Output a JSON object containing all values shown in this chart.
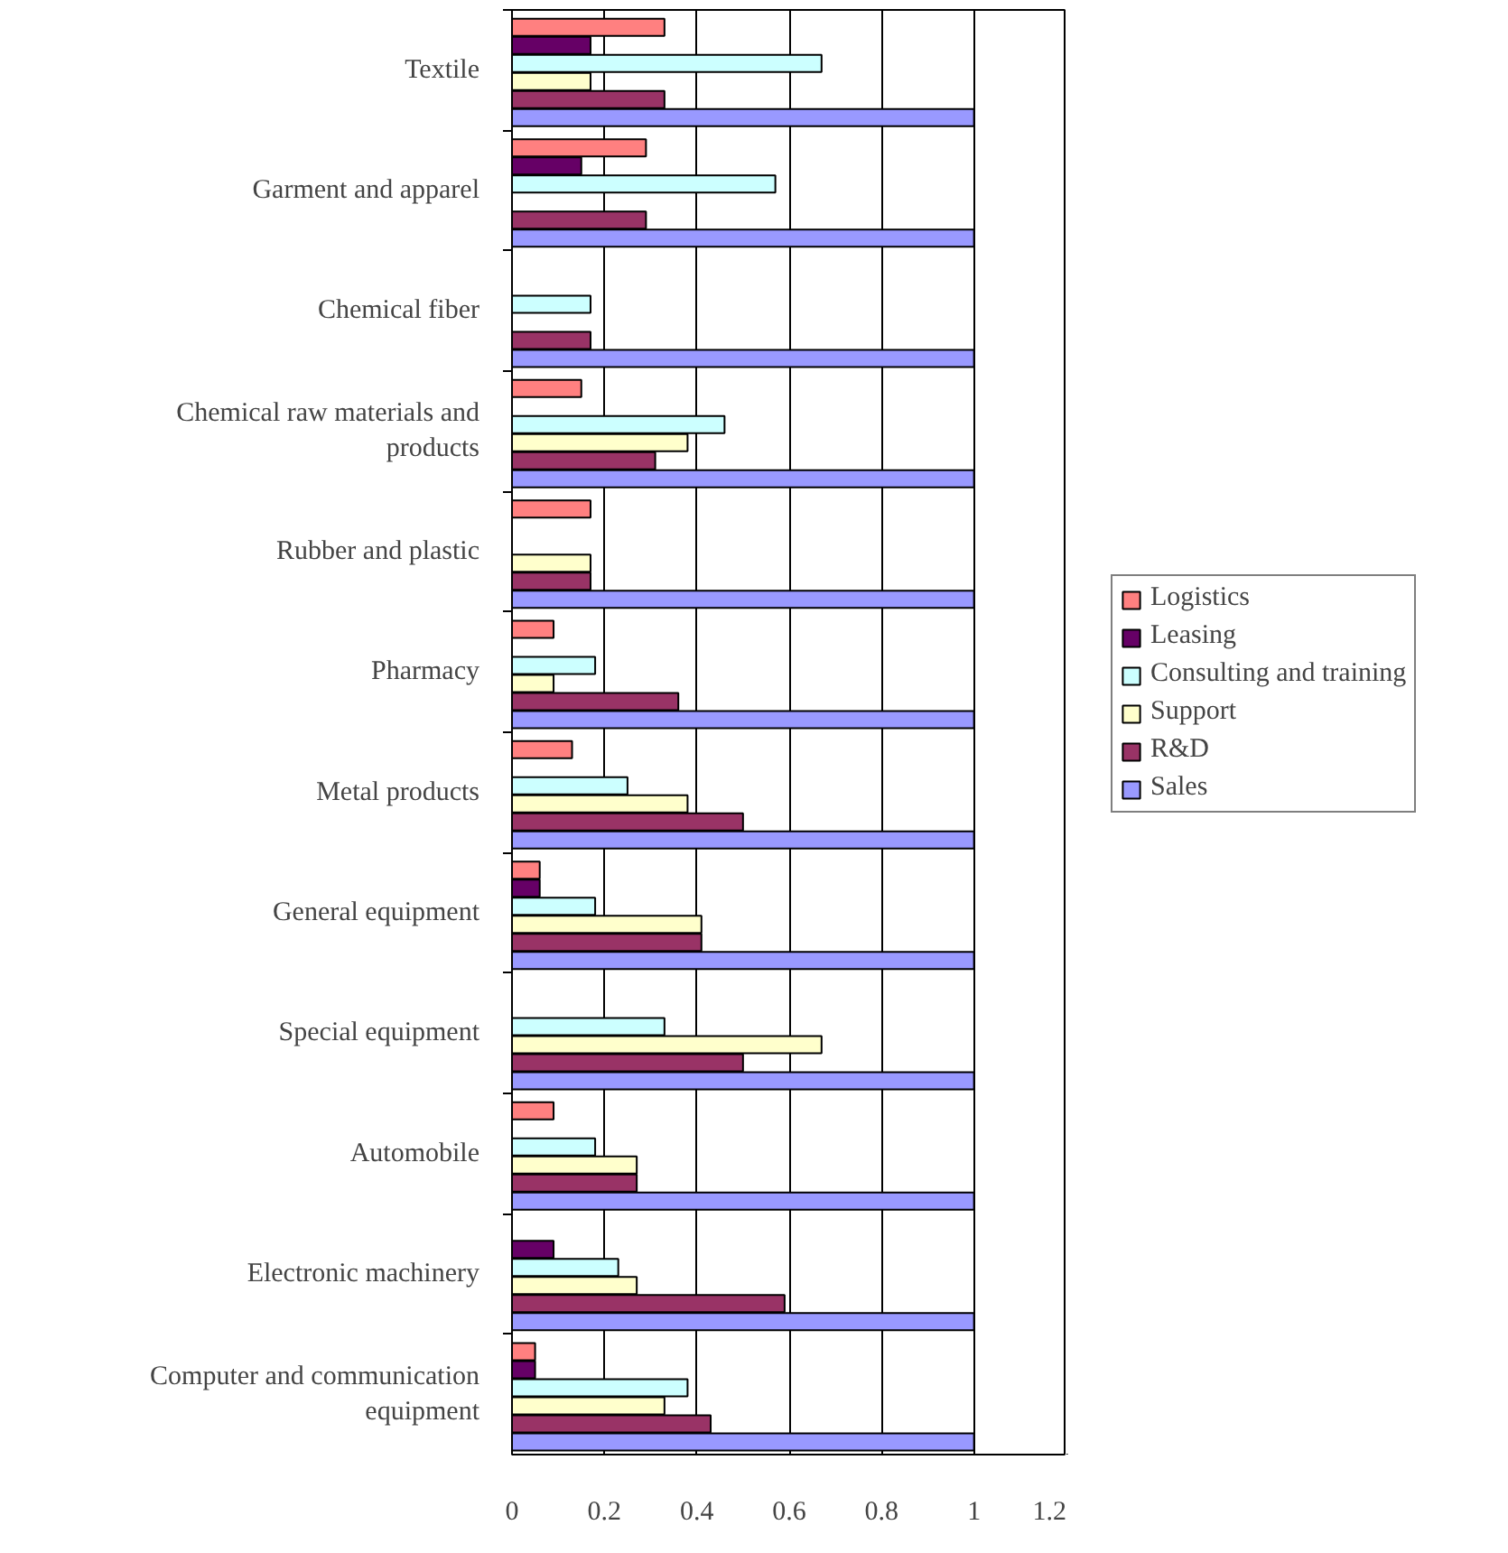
{
  "chart_data": {
    "type": "bar",
    "orientation": "horizontal",
    "categories": [
      "Textile",
      "Garment and apparel",
      "Chemical fiber",
      "Chemical raw materials and products",
      "Rubber and plastic",
      "Pharmacy",
      "Metal products",
      "General equipment",
      "Special equipment",
      "Automobile",
      "Electronic machinery",
      "Computer and communication equipment"
    ],
    "series": [
      {
        "name": "Logistics",
        "color": "#ff8080",
        "values": [
          0.33,
          0.29,
          null,
          0.15,
          0.17,
          0.09,
          0.13,
          0.06,
          null,
          0.09,
          null,
          0.05
        ]
      },
      {
        "name": "Leasing",
        "color": "#660066",
        "values": [
          0.17,
          0.15,
          null,
          null,
          null,
          null,
          null,
          0.06,
          null,
          null,
          0.09,
          0.05
        ]
      },
      {
        "name": "Consulting and training",
        "color": "#ccffff",
        "values": [
          0.67,
          0.57,
          0.17,
          0.46,
          null,
          0.18,
          0.25,
          0.18,
          0.33,
          0.18,
          0.23,
          0.38
        ]
      },
      {
        "name": "Support",
        "color": "#ffffcc",
        "values": [
          0.17,
          null,
          null,
          0.38,
          0.17,
          0.09,
          0.38,
          0.41,
          0.67,
          0.27,
          0.27,
          0.33
        ]
      },
      {
        "name": "R&D",
        "color": "#993366",
        "values": [
          0.33,
          0.29,
          0.17,
          0.31,
          0.17,
          0.36,
          0.5,
          0.41,
          0.5,
          0.27,
          0.59,
          0.43
        ]
      },
      {
        "name": "Sales",
        "color": "#9999ff",
        "values": [
          1,
          1,
          1,
          1,
          1,
          1,
          1,
          1,
          1,
          1,
          1,
          1
        ]
      }
    ],
    "xlim": [
      0,
      1.2
    ],
    "xticks": [
      0,
      0.2,
      0.4,
      0.6,
      0.8,
      1,
      1.2
    ],
    "grid": "x",
    "legend": "right"
  }
}
